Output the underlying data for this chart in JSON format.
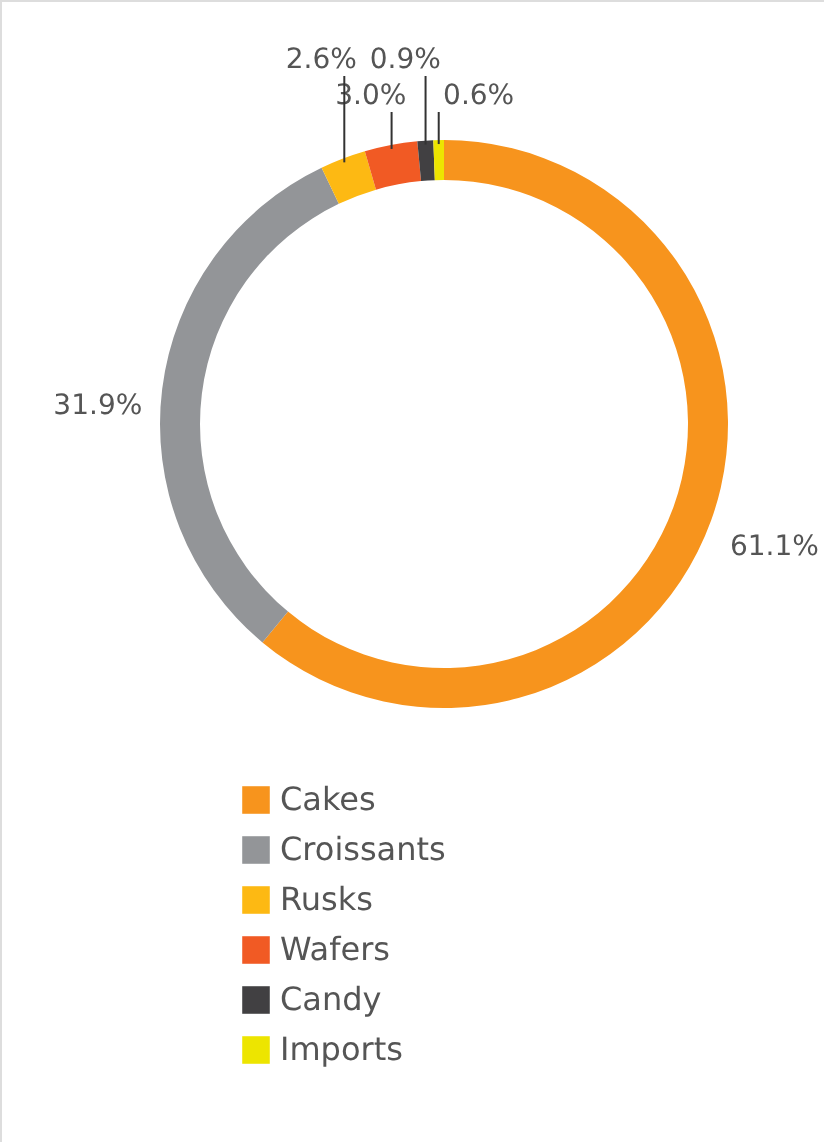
{
  "chart_data": {
    "type": "donut",
    "categories": [
      "Cakes",
      "Croissants",
      "Rusks",
      "Wafers",
      "Candy",
      "Imports"
    ],
    "values": [
      61.1,
      31.9,
      2.6,
      3.0,
      0.9,
      0.6
    ],
    "colors": [
      "#f7941d",
      "#939598",
      "#fdb913",
      "#f15a24",
      "#414042",
      "#ede500"
    ],
    "value_labels": [
      "61.1%",
      "31.9%",
      "2.6%",
      "3.0%",
      "0.9%",
      "0.6%"
    ],
    "legend": "bottom"
  }
}
